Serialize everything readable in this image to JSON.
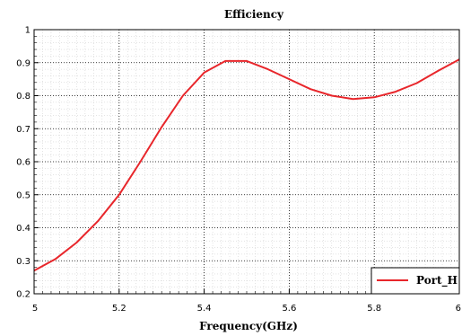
{
  "chart_data": {
    "type": "line",
    "title": "Efficiency",
    "xlabel": "Frequency(GHz)",
    "ylabel": "",
    "xlim": [
      5,
      6
    ],
    "ylim": [
      0.2,
      1
    ],
    "xticks": [
      "5",
      "5.2",
      "5.4",
      "5.6",
      "5.8",
      "6"
    ],
    "yticks": [
      "0.2",
      "0.3",
      "0.4",
      "0.5",
      "0.6",
      "0.7",
      "0.8",
      "0.9",
      "1"
    ],
    "grid": true,
    "legend_position": "bottom-right",
    "series": [
      {
        "name": "Port_H",
        "color": "#e8262b",
        "x": [
          5.0,
          5.05,
          5.1,
          5.15,
          5.2,
          5.25,
          5.3,
          5.35,
          5.4,
          5.45,
          5.5,
          5.55,
          5.6,
          5.65,
          5.7,
          5.75,
          5.8,
          5.85,
          5.9,
          5.95,
          6.0
        ],
        "y": [
          0.27,
          0.305,
          0.355,
          0.42,
          0.5,
          0.6,
          0.705,
          0.8,
          0.87,
          0.905,
          0.905,
          0.88,
          0.85,
          0.82,
          0.8,
          0.79,
          0.795,
          0.812,
          0.838,
          0.875,
          0.91
        ]
      }
    ]
  }
}
